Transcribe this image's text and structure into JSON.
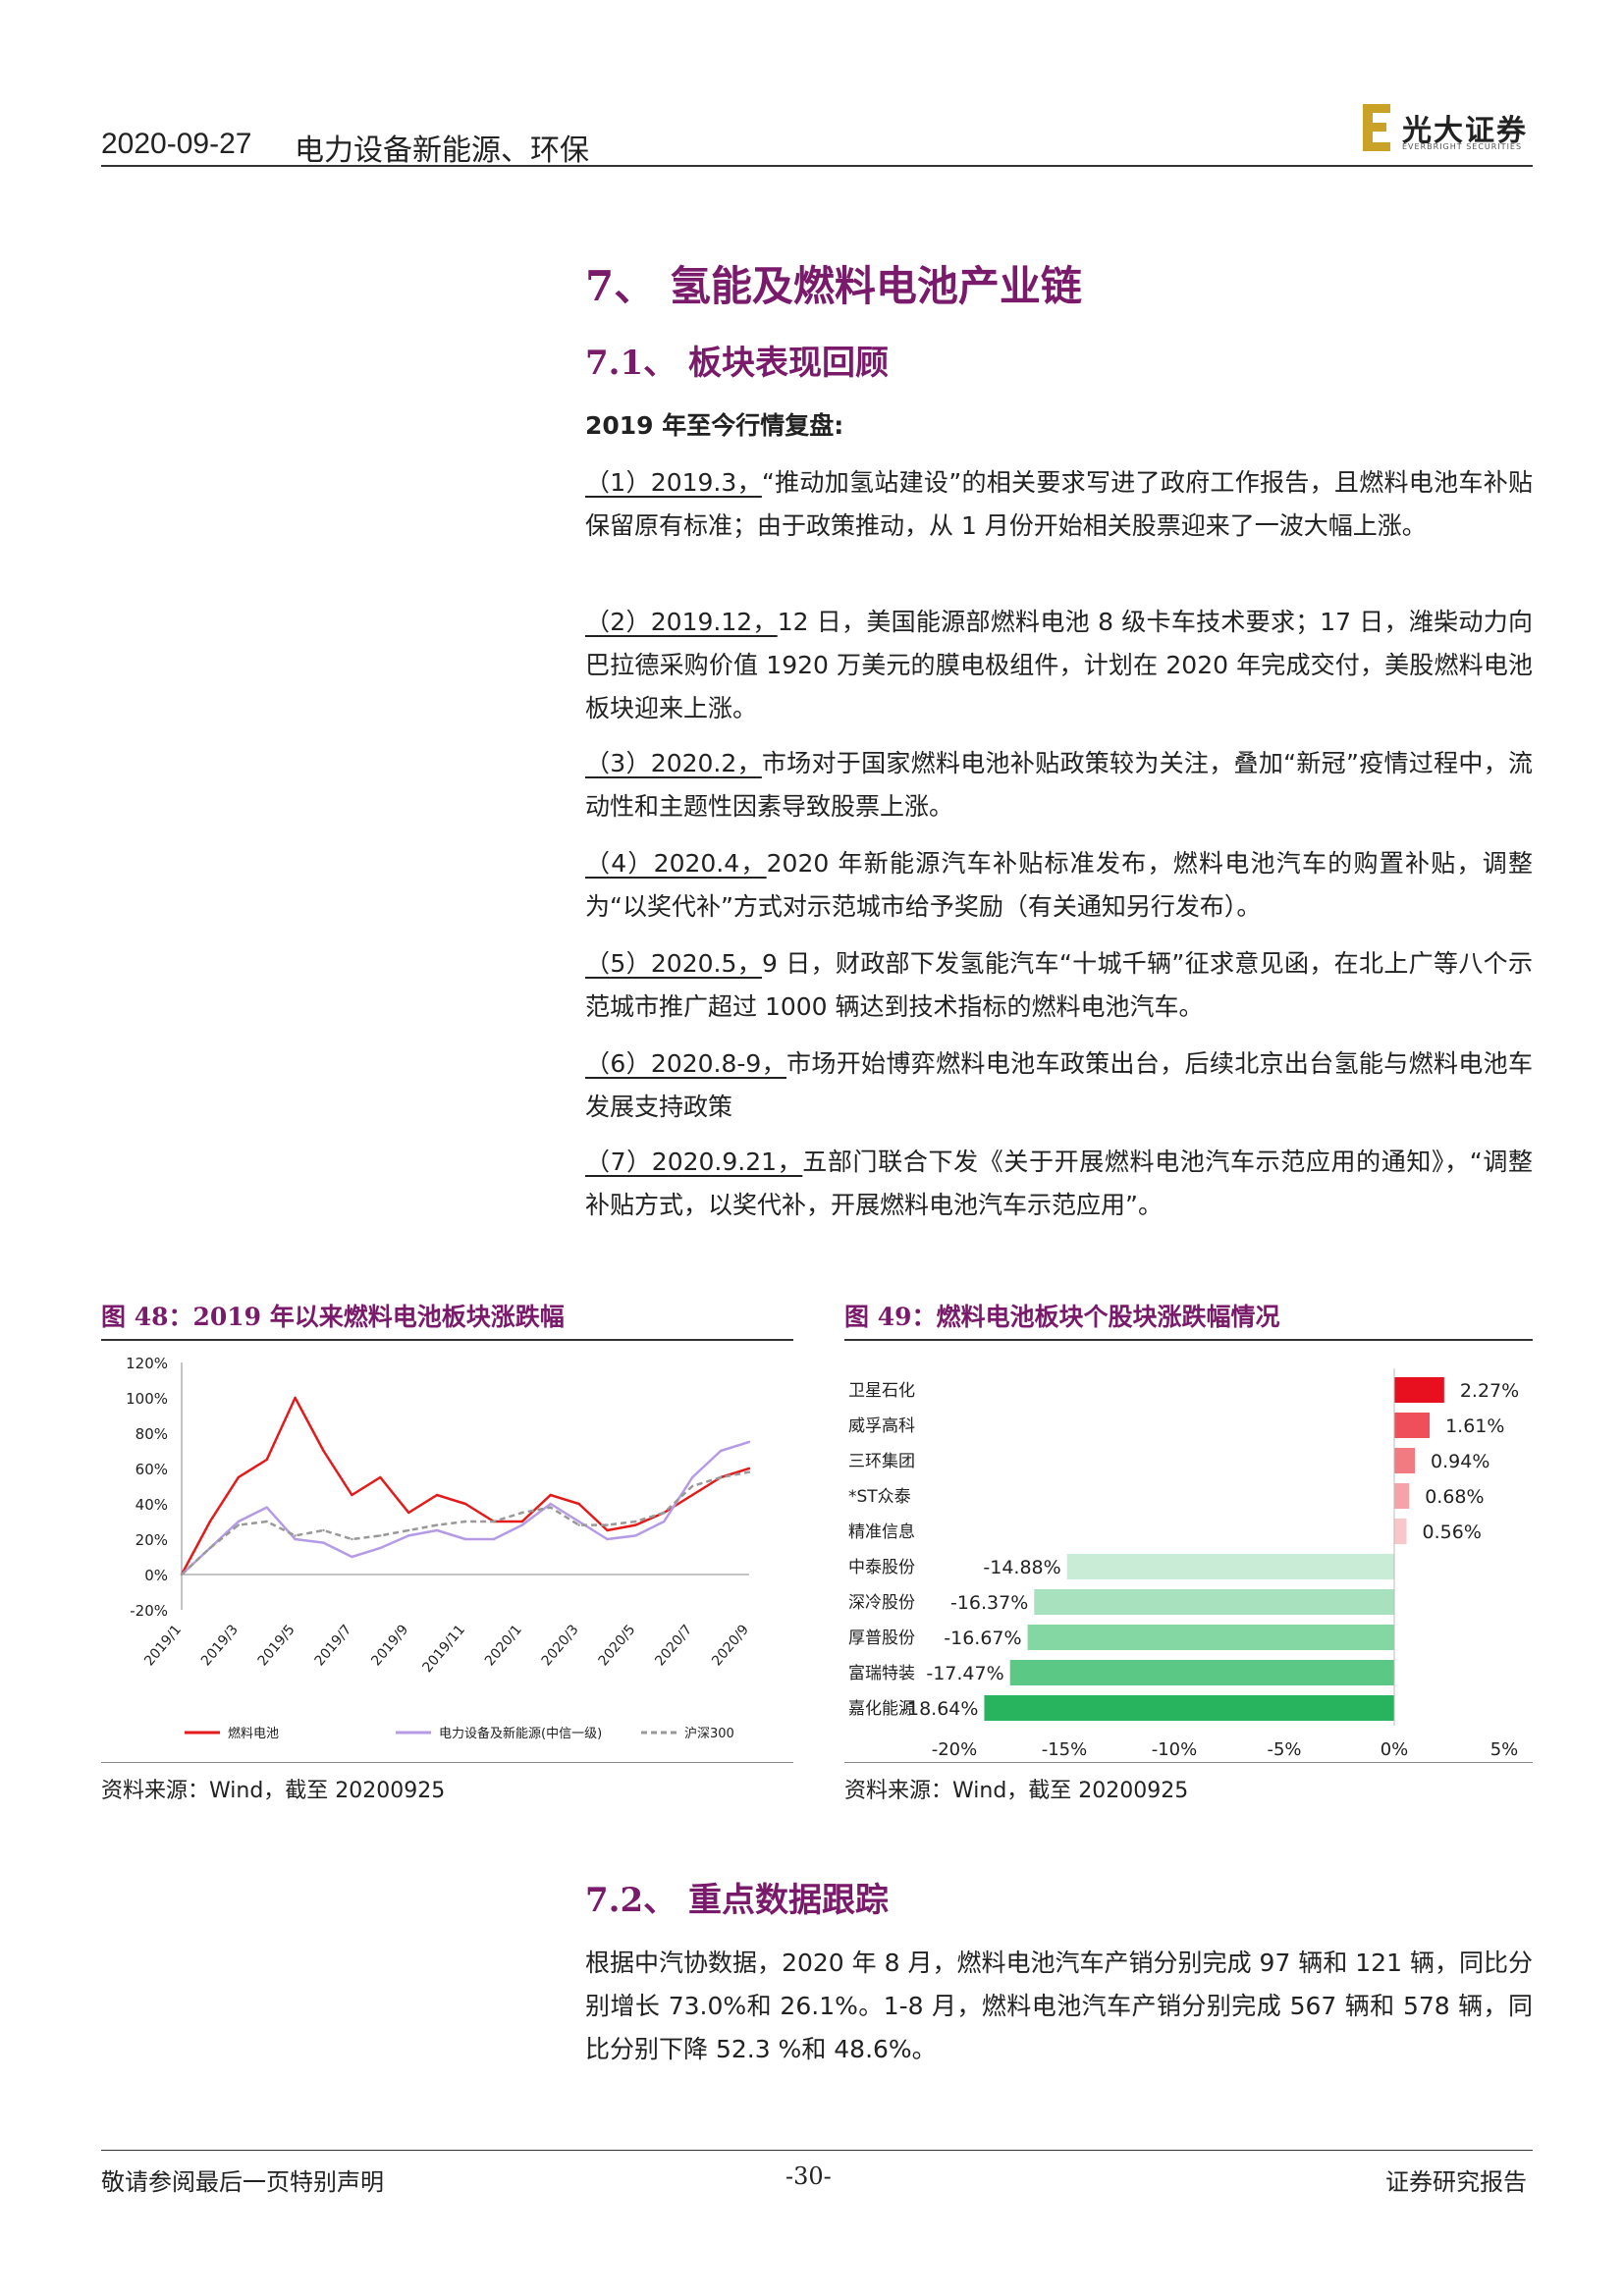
{
  "header": {
    "date": "2020-09-27",
    "sector": "电力设备新能源、环保",
    "logo_name": "光大证券",
    "logo_sub": "EVERBRIGHT SECURITIES"
  },
  "section7": {
    "title": "7、 氢能及燃料电池产业链"
  },
  "section71": {
    "title": "7.1、 板块表现回顾",
    "recap_title": "2019 年至今行情复盘:",
    "items": [
      {
        "lead": "（1）2019.3，",
        "text": "“推动加氢站建设”的相关要求写进了政府工作报告，且燃料电池车补贴保留原有标准；由于政策推动，从 1 月份开始相关股票迎来了一波大幅上涨。"
      },
      {
        "lead": "（2）2019.12，",
        "text": "12 日，美国能源部燃料电池 8 级卡车技术要求；17 日，潍柴动力向巴拉德采购价值 1920 万美元的膜电极组件，计划在 2020 年完成交付，美股燃料电池板块迎来上涨。"
      },
      {
        "lead": "（3）2020.2，",
        "text": "市场对于国家燃料电池补贴政策较为关注，叠加“新冠”疫情过程中，流动性和主题性因素导致股票上涨。"
      },
      {
        "lead": "（4）2020.4，",
        "text": "2020 年新能源汽车补贴标准发布，燃料电池汽车的购置补贴，调整为“以奖代补”方式对示范城市给予奖励（有关通知另行发布）。"
      },
      {
        "lead": "（5）2020.5，",
        "text": "9 日，财政部下发氢能汽车“十城千辆”征求意见函，在北上广等八个示范城市推广超过 1000 辆达到技术指标的燃料电池汽车。"
      },
      {
        "lead": "（6）2020.8-9，",
        "text": "市场开始博弈燃料电池车政策出台，后续北京出台氢能与燃料电池车发展支持政策"
      },
      {
        "lead": "（7）2020.9.21，",
        "text": "五部门联合下发《关于开展燃料电池汽车示范应用的通知》，“调整补贴方式，以奖代补，开展燃料电池汽车示范应用”。"
      }
    ]
  },
  "fig48": {
    "title": "图 48：2019 年以来燃料电池板块涨跌幅",
    "source": "资料来源：Wind，截至 20200925"
  },
  "fig49": {
    "title": "图 49：燃料电池板块个股块涨跌幅情况",
    "source": "资料来源：Wind，截至 20200925"
  },
  "section72": {
    "title": "7.2、 重点数据跟踪",
    "text": "根据中汽协数据，2020 年 8 月，燃料电池汽车产销分别完成 97 辆和 121 辆，同比分别增长 73.0%和 26.1%。1-8 月，燃料电池汽车产销分别完成 567 辆和 578 辆，同比分别下降 52.3 %和 48.6%。"
  },
  "footer": {
    "left": "敬请参阅最后一页特别声明",
    "page": "-30-",
    "right": "证券研究报告"
  },
  "chart_data": [
    {
      "type": "line",
      "title": "图 48：2019 年以来燃料电池板块涨跌幅",
      "y_ticks": [
        "120%",
        "100%",
        "80%",
        "60%",
        "40%",
        "20%",
        "0%",
        "-20%"
      ],
      "ylim": [
        -20,
        120
      ],
      "x_ticks": [
        "2019/1",
        "2019/3",
        "2019/5",
        "2019/7",
        "2019/9",
        "2019/11",
        "2020/1",
        "2020/3",
        "2020/5",
        "2020/7",
        "2020/9"
      ],
      "x": [
        "2019/1",
        "2019/2",
        "2019/3",
        "2019/4",
        "2019/5",
        "2019/6",
        "2019/7",
        "2019/8",
        "2019/9",
        "2019/10",
        "2019/11",
        "2019/12",
        "2020/1",
        "2020/2",
        "2020/3",
        "2020/4",
        "2020/5",
        "2020/6",
        "2020/7",
        "2020/8",
        "2020/9"
      ],
      "series": [
        {
          "name": "燃料电池",
          "color": "#e41a1a",
          "dash": false,
          "values": [
            0,
            30,
            55,
            65,
            100,
            70,
            45,
            55,
            35,
            45,
            40,
            30,
            30,
            45,
            40,
            25,
            28,
            35,
            45,
            55,
            60
          ]
        },
        {
          "name": "电力设备及新能源(中信一级)",
          "color": "#b59ae6",
          "dash": false,
          "values": [
            0,
            15,
            30,
            38,
            20,
            18,
            10,
            15,
            22,
            25,
            20,
            20,
            28,
            40,
            30,
            20,
            22,
            30,
            55,
            70,
            75
          ]
        },
        {
          "name": "沪深300",
          "color": "#999999",
          "dash": true,
          "values": [
            0,
            15,
            28,
            30,
            22,
            25,
            20,
            22,
            25,
            28,
            30,
            30,
            35,
            38,
            28,
            28,
            30,
            35,
            50,
            55,
            58
          ]
        }
      ]
    },
    {
      "type": "bar",
      "orientation": "horizontal",
      "title": "图 49：燃料电池板块个股块涨跌幅情况",
      "categories": [
        "卫星石化",
        "威孚高科",
        "三环集团",
        "*ST众泰",
        "精准信息",
        "中泰股份",
        "深冷股份",
        "厚普股份",
        "富瑞特装",
        "嘉化能源"
      ],
      "values": [
        2.27,
        1.61,
        0.94,
        0.68,
        0.56,
        -14.88,
        -16.37,
        -16.67,
        -17.47,
        -18.64
      ],
      "labels": [
        "2.27%",
        "1.61%",
        "0.94%",
        "0.68%",
        "0.56%",
        "-14.88%",
        "-16.37%",
        "-16.67%",
        "-17.47%",
        "-18.64%"
      ],
      "x_ticks": [
        "-20%",
        "-15%",
        "-10%",
        "-5%",
        "0%",
        "5%"
      ],
      "xlim": [
        -20,
        5
      ],
      "colors_pos": [
        "#e8101f",
        "#ee4f5a",
        "#f27b82",
        "#f5a3a8",
        "#f8c7ca"
      ],
      "colors_neg": [
        "#c9ecd6",
        "#a7e1bd",
        "#84d6a3",
        "#5cc886",
        "#28b35f"
      ]
    }
  ]
}
